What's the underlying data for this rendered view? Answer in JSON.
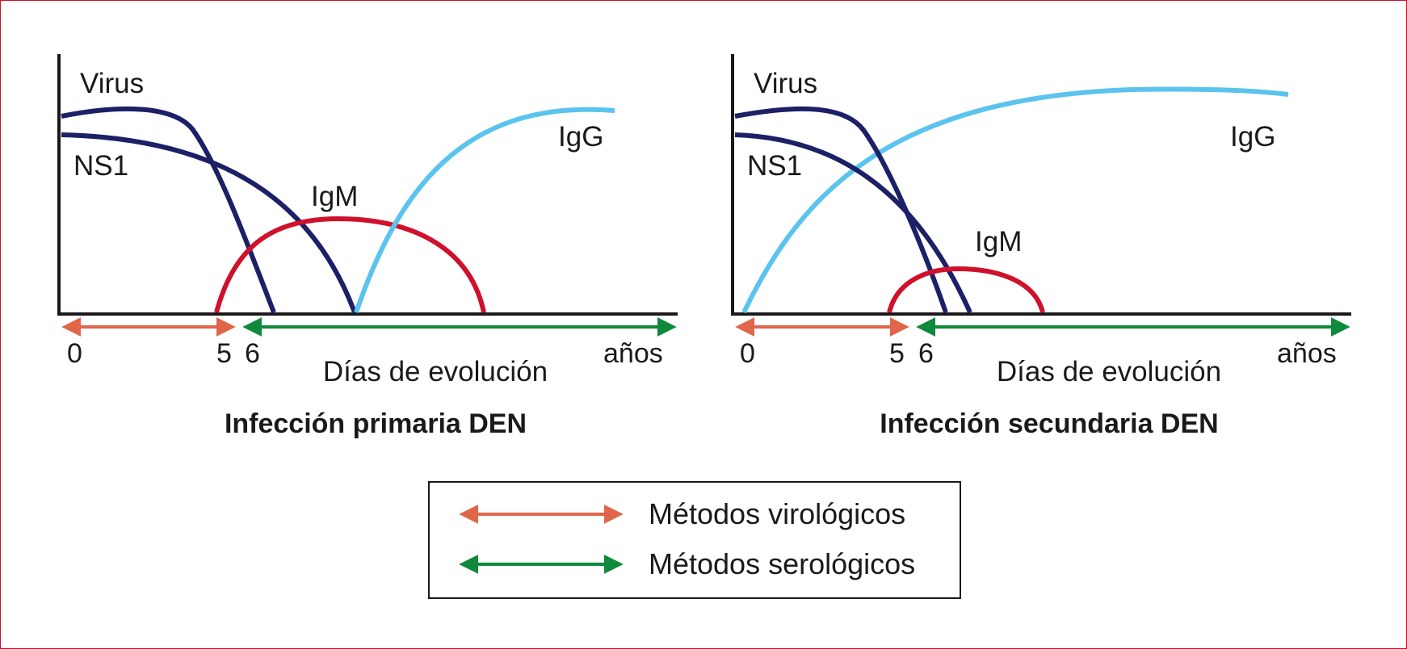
{
  "panels": [
    {
      "id": "primary",
      "title": "Infección primaria DEN",
      "xlabel": "Días de evolución",
      "ticks": [
        "0",
        "5",
        "6",
        "años"
      ],
      "curves": {
        "virus": "Virus",
        "ns1": "NS1",
        "igm": "IgM",
        "igg": "IgG"
      }
    },
    {
      "id": "secondary",
      "title": "Infección secundaria DEN",
      "xlabel": "Días de evolución",
      "ticks": [
        "0",
        "5",
        "6",
        "años"
      ],
      "curves": {
        "virus": "Virus",
        "ns1": "NS1",
        "igm": "IgM",
        "igg": "IgG"
      }
    }
  ],
  "legend": {
    "virologic": "Métodos virológicos",
    "serologic": "Métodos serológicos"
  },
  "colors": {
    "virus_ns1": "#1c2066",
    "igm": "#d0112b",
    "igg": "#5bc4ee",
    "virologic_arrow": "#e0664a",
    "serologic_arrow": "#0f8a3c",
    "border": "#c8102e",
    "axis": "#1a1a1a"
  }
}
